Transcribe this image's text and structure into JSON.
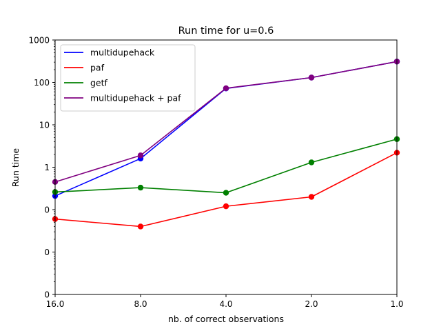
{
  "chart_data": {
    "type": "line",
    "title": "Run time for u=0.6",
    "xlabel": "nb. of correct observations",
    "ylabel": "Run time",
    "x": [
      16.0,
      8.0,
      4.0,
      2.0,
      1.0
    ],
    "x_scale": "log2",
    "x_direction": "reversed",
    "xlim": [
      16.0,
      1.0
    ],
    "x_tick_values": [
      16.0,
      8.0,
      4.0,
      2.0,
      1.0
    ],
    "x_tick_labels": [
      "16.0",
      "8.0",
      "4.0",
      "2.0",
      "1.0"
    ],
    "y_scale": "log",
    "ylim": [
      0.001,
      1000
    ],
    "y_tick_values": [
      0.001,
      0.01,
      0.1,
      1,
      10,
      100,
      1000
    ],
    "y_tick_labels": [
      "0",
      "0",
      "0",
      "1",
      "10",
      "100",
      "1000"
    ],
    "grid": false,
    "legend_position": "top-left",
    "series": [
      {
        "name": "multidupehack",
        "color": "#0000ff",
        "values": [
          0.21,
          1.6,
          72,
          130,
          310
        ]
      },
      {
        "name": "paf",
        "color": "#ff0000",
        "values": [
          0.06,
          0.04,
          0.12,
          0.2,
          2.2
        ]
      },
      {
        "name": "getf",
        "color": "#008000",
        "values": [
          0.26,
          0.33,
          0.25,
          1.3,
          4.6
        ]
      },
      {
        "name": "multidupehack + paf",
        "color": "#800080",
        "values": [
          0.45,
          1.9,
          73,
          130,
          310
        ]
      }
    ]
  }
}
